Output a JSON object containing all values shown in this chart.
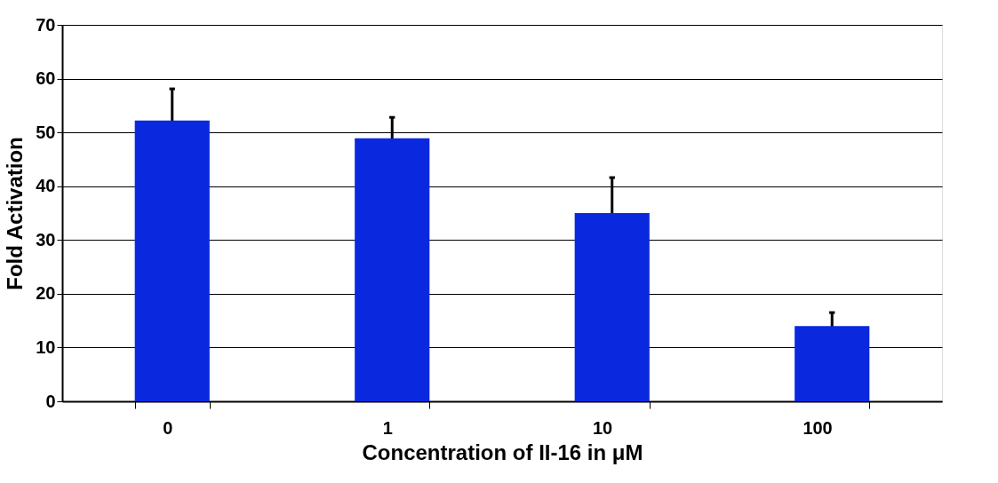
{
  "chart_data": {
    "type": "bar",
    "xlabel": "Concentration of II-16 in μM",
    "ylabel": "Fold Activation",
    "categories": [
      "0",
      "1",
      "10",
      "100"
    ],
    "values": [
      52.2,
      48.9,
      35.0,
      14.0
    ],
    "errors": [
      5.9,
      3.9,
      6.6,
      2.5
    ],
    "color": "#0a28de",
    "ylim": [
      0,
      70
    ],
    "yticks": [
      0,
      10,
      20,
      30,
      40,
      50,
      60,
      70
    ],
    "grid": "y"
  }
}
